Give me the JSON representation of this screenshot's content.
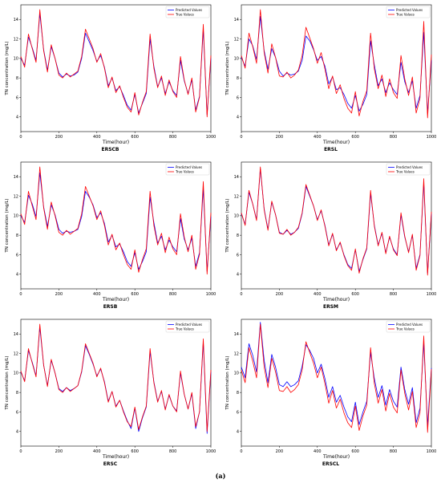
{
  "figure_label": "(a)",
  "chart_data": [
    {
      "type": "line",
      "caption": "ERSCB",
      "xlabel": "Time(hour)",
      "ylabel": "TN concentration (mg/L)",
      "xlim": [
        0,
        1000
      ],
      "ylim": [
        2.5,
        15.5
      ],
      "xticks": [
        0,
        200,
        400,
        600,
        800,
        1000
      ],
      "yticks": [
        4,
        6,
        8,
        10,
        12,
        14
      ],
      "legend_position": "top-right",
      "grid": false,
      "series": [
        {
          "name": "Predicted Values",
          "color": "#0000ff"
        },
        {
          "name": "True Values",
          "color": "#ff0000"
        }
      ],
      "x": [
        0,
        20,
        40,
        60,
        80,
        100,
        120,
        140,
        160,
        180,
        200,
        220,
        240,
        260,
        280,
        300,
        320,
        340,
        360,
        380,
        400,
        420,
        440,
        460,
        480,
        500,
        520,
        540,
        560,
        580,
        600,
        620,
        640,
        660,
        680,
        700,
        720,
        740,
        760,
        780,
        800,
        820,
        840,
        860,
        880,
        900,
        920,
        940,
        960,
        980,
        1000
      ],
      "true_values": [
        10.2,
        9.1,
        12.5,
        11.0,
        9.6,
        15.0,
        10.8,
        8.6,
        11.4,
        10.0,
        8.3,
        8.0,
        8.5,
        8.1,
        8.4,
        8.7,
        10.2,
        13.0,
        12.0,
        11.0,
        9.6,
        10.5,
        9.0,
        7.0,
        8.1,
        6.5,
        7.2,
        6.0,
        5.0,
        4.5,
        6.5,
        4.2,
        5.5,
        6.6,
        12.5,
        9.0,
        7.0,
        8.2,
        6.2,
        7.8,
        6.6,
        6.0,
        10.2,
        7.8,
        6.3,
        8.0,
        4.5,
        6.0,
        13.5,
        4.0,
        10.3
      ],
      "predicted_values": [
        10.0,
        9.3,
        12.2,
        11.1,
        9.8,
        14.6,
        10.9,
        8.8,
        11.2,
        10.0,
        8.5,
        8.1,
        8.4,
        8.2,
        8.3,
        8.6,
        10.0,
        12.6,
        11.7,
        10.8,
        9.7,
        10.3,
        9.1,
        7.2,
        8.0,
        6.7,
        7.1,
        6.2,
        5.2,
        4.7,
        6.3,
        4.4,
        5.4,
        6.4,
        12.0,
        9.2,
        7.1,
        8.0,
        6.4,
        7.6,
        6.7,
        6.2,
        9.8,
        7.7,
        6.4,
        7.8,
        4.7,
        6.1,
        13.0,
        4.2,
        10.0
      ]
    },
    {
      "type": "line",
      "caption": "ERSL",
      "xlabel": "Time(hour)",
      "ylabel": "TN concentration (mg/L)",
      "xlim": [
        0,
        1000
      ],
      "ylim": [
        2.5,
        15.5
      ],
      "xticks": [
        0,
        200,
        400,
        600,
        800,
        1000
      ],
      "yticks": [
        4,
        6,
        8,
        10,
        12,
        14
      ],
      "legend_position": "top-right",
      "grid": false,
      "series": [
        {
          "name": "Predicted Values",
          "color": "#0000ff"
        },
        {
          "name": "True Values",
          "color": "#ff0000"
        }
      ],
      "x": [
        0,
        20,
        40,
        60,
        80,
        100,
        120,
        140,
        160,
        180,
        200,
        220,
        240,
        260,
        280,
        300,
        320,
        340,
        360,
        380,
        400,
        420,
        440,
        460,
        480,
        500,
        520,
        540,
        560,
        580,
        600,
        620,
        640,
        660,
        680,
        700,
        720,
        740,
        760,
        780,
        800,
        820,
        840,
        860,
        880,
        900,
        920,
        940,
        960,
        980,
        1000
      ],
      "true_values": [
        10.3,
        9.0,
        12.6,
        11.2,
        9.5,
        15.0,
        10.6,
        8.5,
        11.5,
        10.1,
        8.2,
        8.1,
        8.6,
        8.0,
        8.3,
        8.8,
        10.3,
        13.2,
        12.1,
        11.0,
        9.5,
        10.6,
        8.9,
        6.9,
        8.2,
        6.4,
        7.3,
        5.9,
        4.9,
        4.4,
        6.6,
        4.1,
        5.6,
        6.7,
        12.6,
        8.9,
        6.9,
        8.3,
        6.1,
        7.9,
        6.5,
        5.9,
        10.3,
        7.9,
        6.2,
        8.1,
        4.4,
        5.9,
        13.8,
        3.9,
        10.4
      ],
      "predicted_values": [
        10.1,
        9.2,
        12.0,
        11.3,
        9.9,
        14.3,
        10.8,
        8.9,
        11.0,
        10.1,
        8.7,
        8.2,
        8.5,
        8.3,
        8.4,
        8.7,
        9.8,
        12.3,
        11.8,
        10.9,
        9.8,
        10.2,
        9.2,
        7.4,
        8.1,
        6.8,
        7.0,
        6.3,
        5.4,
        4.9,
        6.2,
        4.6,
        5.3,
        6.3,
        11.8,
        9.3,
        7.2,
        7.9,
        6.5,
        7.5,
        6.8,
        6.3,
        9.6,
        7.6,
        6.5,
        7.7,
        4.9,
        6.2,
        12.7,
        4.4,
        9.8
      ]
    },
    {
      "type": "line",
      "caption": "ERSB",
      "xlabel": "Time(hour)",
      "ylabel": "TN concentration (mg/L)",
      "xlim": [
        0,
        1000
      ],
      "ylim": [
        2.5,
        15.5
      ],
      "xticks": [
        0,
        200,
        400,
        600,
        800,
        1000
      ],
      "yticks": [
        4,
        6,
        8,
        10,
        12,
        14
      ],
      "legend_position": "top-right",
      "grid": false,
      "series": [
        {
          "name": "Predicted Values",
          "color": "#0000ff"
        },
        {
          "name": "True Values",
          "color": "#ff0000"
        }
      ],
      "x": [
        0,
        20,
        40,
        60,
        80,
        100,
        120,
        140,
        160,
        180,
        200,
        220,
        240,
        260,
        280,
        300,
        320,
        340,
        360,
        380,
        400,
        420,
        440,
        460,
        480,
        500,
        520,
        540,
        560,
        580,
        600,
        620,
        640,
        660,
        680,
        700,
        720,
        740,
        760,
        780,
        800,
        820,
        840,
        860,
        880,
        900,
        920,
        940,
        960,
        980,
        1000
      ],
      "true_values": [
        10.2,
        9.1,
        12.5,
        11.0,
        9.6,
        15.0,
        10.8,
        8.6,
        11.4,
        10.0,
        8.3,
        8.0,
        8.5,
        8.1,
        8.4,
        8.7,
        10.2,
        13.0,
        12.0,
        11.0,
        9.6,
        10.5,
        9.0,
        7.0,
        8.1,
        6.5,
        7.2,
        6.0,
        5.0,
        4.5,
        6.5,
        4.2,
        5.5,
        6.6,
        12.5,
        9.0,
        7.0,
        8.2,
        6.2,
        7.8,
        6.6,
        6.0,
        10.2,
        7.8,
        6.3,
        8.0,
        4.5,
        6.0,
        13.5,
        4.0,
        10.3
      ],
      "predicted_values": [
        10.0,
        9.3,
        12.1,
        11.2,
        9.9,
        14.4,
        10.9,
        8.9,
        11.1,
        10.1,
        8.6,
        8.2,
        8.4,
        8.3,
        8.4,
        8.6,
        9.9,
        12.5,
        11.9,
        11.1,
        9.8,
        10.3,
        9.2,
        7.3,
        8.0,
        6.8,
        7.1,
        6.3,
        5.3,
        4.8,
        6.2,
        4.5,
        5.3,
        6.3,
        11.9,
        9.3,
        7.2,
        7.9,
        6.5,
        7.5,
        6.8,
        6.3,
        9.7,
        7.6,
        6.5,
        7.7,
        4.8,
        6.2,
        12.8,
        4.3,
        9.9
      ]
    },
    {
      "type": "line",
      "caption": "ERSM",
      "xlabel": "Time(hour)",
      "ylabel": "TN concentration (mg/L)",
      "xlim": [
        0,
        1000
      ],
      "ylim": [
        2.5,
        15.5
      ],
      "xticks": [
        0,
        200,
        400,
        600,
        800,
        1000
      ],
      "yticks": [
        4,
        6,
        8,
        10,
        12,
        14
      ],
      "legend_position": "top-right",
      "grid": false,
      "series": [
        {
          "name": "Predicted Values",
          "color": "#0000ff"
        },
        {
          "name": "True Values",
          "color": "#ff0000"
        }
      ],
      "x": [
        0,
        20,
        40,
        60,
        80,
        100,
        120,
        140,
        160,
        180,
        200,
        220,
        240,
        260,
        280,
        300,
        320,
        340,
        360,
        380,
        400,
        420,
        440,
        460,
        480,
        500,
        520,
        540,
        560,
        580,
        600,
        620,
        640,
        660,
        680,
        700,
        720,
        740,
        760,
        780,
        800,
        820,
        840,
        860,
        880,
        900,
        920,
        940,
        960,
        980,
        1000
      ],
      "true_values": [
        10.3,
        9.0,
        12.6,
        11.2,
        9.5,
        15.0,
        10.6,
        8.5,
        11.5,
        10.1,
        8.2,
        8.1,
        8.6,
        8.0,
        8.3,
        8.8,
        10.3,
        13.2,
        12.1,
        11.0,
        9.5,
        10.6,
        8.9,
        6.9,
        8.2,
        6.4,
        7.3,
        5.9,
        4.9,
        4.4,
        6.6,
        4.1,
        5.6,
        6.7,
        12.6,
        8.9,
        6.9,
        8.3,
        6.1,
        7.9,
        6.5,
        5.9,
        10.3,
        7.9,
        6.2,
        8.1,
        4.4,
        5.9,
        13.8,
        3.9,
        10.4
      ],
      "predicted_values": [
        10.2,
        9.1,
        12.4,
        11.2,
        9.6,
        14.8,
        10.7,
        8.6,
        11.4,
        10.1,
        8.3,
        8.1,
        8.5,
        8.1,
        8.3,
        8.7,
        10.2,
        13.0,
        12.0,
        11.0,
        9.6,
        10.5,
        9.0,
        7.0,
        8.1,
        6.5,
        7.2,
        6.0,
        5.0,
        4.6,
        6.5,
        4.3,
        5.5,
        6.6,
        12.3,
        9.0,
        7.0,
        8.2,
        6.2,
        7.8,
        6.6,
        6.0,
        10.1,
        7.8,
        6.3,
        8.0,
        4.6,
        6.0,
        13.4,
        4.1,
        10.2
      ]
    },
    {
      "type": "line",
      "caption": "ERSC",
      "xlabel": "Time(hour)",
      "ylabel": "TN concentration (mg/L)",
      "xlim": [
        0,
        1000
      ],
      "ylim": [
        2.5,
        15.5
      ],
      "xticks": [
        0,
        200,
        400,
        600,
        800,
        1000
      ],
      "yticks": [
        4,
        6,
        8,
        10,
        12,
        14
      ],
      "legend_position": "top-right",
      "grid": false,
      "series": [
        {
          "name": "Predicted Values",
          "color": "#0000ff"
        },
        {
          "name": "True Values",
          "color": "#ff0000"
        }
      ],
      "x": [
        0,
        20,
        40,
        60,
        80,
        100,
        120,
        140,
        160,
        180,
        200,
        220,
        240,
        260,
        280,
        300,
        320,
        340,
        360,
        380,
        400,
        420,
        440,
        460,
        480,
        500,
        520,
        540,
        560,
        580,
        600,
        620,
        640,
        660,
        680,
        700,
        720,
        740,
        760,
        780,
        800,
        820,
        840,
        860,
        880,
        900,
        920,
        940,
        960,
        980,
        1000
      ],
      "true_values": [
        10.2,
        9.1,
        12.5,
        11.0,
        9.6,
        15.0,
        10.8,
        8.6,
        11.4,
        10.0,
        8.3,
        8.0,
        8.5,
        8.1,
        8.4,
        8.7,
        10.2,
        13.0,
        12.0,
        11.0,
        9.6,
        10.5,
        9.0,
        7.0,
        8.1,
        6.5,
        7.2,
        6.0,
        5.0,
        4.5,
        6.5,
        4.2,
        5.5,
        6.6,
        12.5,
        9.0,
        7.0,
        8.2,
        6.2,
        7.8,
        6.6,
        6.0,
        10.2,
        7.8,
        6.3,
        8.0,
        4.5,
        6.0,
        13.5,
        4.0,
        10.3
      ],
      "predicted_values": [
        10.1,
        9.2,
        12.3,
        11.1,
        9.7,
        14.7,
        10.8,
        8.7,
        11.3,
        10.0,
        8.4,
        8.1,
        8.5,
        8.2,
        8.4,
        8.7,
        10.1,
        12.8,
        11.9,
        10.9,
        9.7,
        10.4,
        9.1,
        7.1,
        8.1,
        6.6,
        7.2,
        6.1,
        5.1,
        4.3,
        6.4,
        4.0,
        5.4,
        6.5,
        12.2,
        9.1,
        7.1,
        8.1,
        6.3,
        7.7,
        6.6,
        6.1,
        10.0,
        7.8,
        6.3,
        7.9,
        4.3,
        6.0,
        13.2,
        3.8,
        10.1
      ]
    },
    {
      "type": "line",
      "caption": "ERSCL",
      "xlabel": "Time(hour)",
      "ylabel": "TN concentration (mg/L)",
      "xlim": [
        0,
        1000
      ],
      "ylim": [
        2.5,
        15.5
      ],
      "xticks": [
        0,
        200,
        400,
        600,
        800,
        1000
      ],
      "yticks": [
        4,
        6,
        8,
        10,
        12,
        14
      ],
      "legend_position": "top-right",
      "grid": false,
      "series": [
        {
          "name": "Predicted Values",
          "color": "#0000ff"
        },
        {
          "name": "True Values",
          "color": "#ff0000"
        }
      ],
      "x": [
        0,
        20,
        40,
        60,
        80,
        100,
        120,
        140,
        160,
        180,
        200,
        220,
        240,
        260,
        280,
        300,
        320,
        340,
        360,
        380,
        400,
        420,
        440,
        460,
        480,
        500,
        520,
        540,
        560,
        580,
        600,
        620,
        640,
        660,
        680,
        700,
        720,
        740,
        760,
        780,
        800,
        820,
        840,
        860,
        880,
        900,
        920,
        940,
        960,
        980,
        1000
      ],
      "true_values": [
        10.3,
        9.0,
        12.6,
        11.2,
        9.5,
        15.0,
        10.6,
        8.5,
        11.5,
        10.1,
        8.2,
        8.1,
        8.6,
        8.0,
        8.3,
        8.8,
        10.3,
        13.2,
        12.1,
        11.0,
        9.5,
        10.6,
        8.9,
        6.9,
        8.2,
        6.4,
        7.3,
        5.9,
        4.9,
        4.4,
        6.6,
        4.1,
        5.6,
        6.7,
        12.6,
        8.9,
        6.9,
        8.3,
        6.1,
        7.9,
        6.5,
        5.9,
        10.3,
        7.9,
        6.2,
        8.1,
        4.4,
        5.9,
        13.8,
        3.9,
        10.4
      ],
      "predicted_values": [
        10.6,
        9.5,
        13.0,
        11.8,
        10.1,
        15.2,
        11.3,
        9.0,
        11.9,
        10.6,
        8.8,
        8.6,
        9.1,
        8.6,
        8.8,
        9.2,
        10.7,
        12.9,
        12.3,
        11.5,
        10.0,
        10.9,
        9.4,
        7.5,
        8.6,
        7.0,
        7.7,
        6.5,
        5.5,
        5.0,
        7.0,
        4.7,
        6.0,
        7.1,
        12.1,
        9.4,
        7.5,
        8.7,
        6.7,
        8.3,
        7.1,
        6.5,
        10.6,
        8.3,
        6.8,
        8.5,
        4.9,
        6.4,
        13.1,
        4.6,
        10.5
      ]
    }
  ]
}
